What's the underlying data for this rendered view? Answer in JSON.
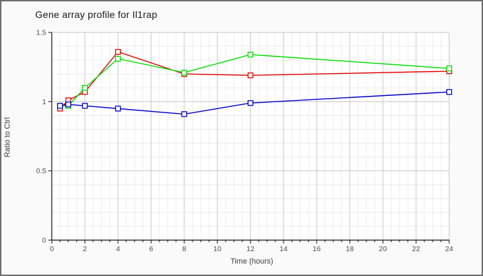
{
  "window": {
    "background_color": "#fafafa",
    "plot_background_color": "#ffffff",
    "border_color": "#6d6d6d"
  },
  "chart_data": {
    "type": "line",
    "title": "Gene array profile for Il1rap",
    "xlabel": "Time (hours)",
    "ylabel": "Ratio to Ctrl",
    "x": [
      0.5,
      1,
      2,
      4,
      8,
      12,
      24
    ],
    "series": [
      {
        "name": "red-series",
        "color": "#e10000",
        "values": [
          0.95,
          1.01,
          1.07,
          1.36,
          1.2,
          1.19,
          1.22
        ]
      },
      {
        "name": "green-series",
        "color": "#00dd00",
        "values": [
          0.97,
          0.97,
          1.1,
          1.31,
          1.21,
          1.34,
          1.24
        ]
      },
      {
        "name": "blue-series",
        "color": "#0000cc",
        "values": [
          0.97,
          0.98,
          0.97,
          0.95,
          0.91,
          0.99,
          1.07
        ]
      }
    ],
    "xlim": [
      0,
      24
    ],
    "ylim": [
      0,
      1.5
    ],
    "x_ticks": [
      0,
      2,
      4,
      6,
      8,
      10,
      12,
      14,
      16,
      18,
      20,
      22,
      24
    ],
    "x_minor_step": 0.5,
    "y_ticks": [
      0,
      0.5,
      1,
      1.5
    ],
    "y_tick_labels": [
      "0",
      "0.5",
      "1",
      "1.5"
    ],
    "y_minor_step": 0.1,
    "grid": {
      "on": true,
      "minor_color": "#ececec",
      "major_color": "#c7c7c7",
      "axis_color": "#111111",
      "tick_label_color": "#4d4d4d"
    },
    "marker": "open-square",
    "legend": "none"
  }
}
